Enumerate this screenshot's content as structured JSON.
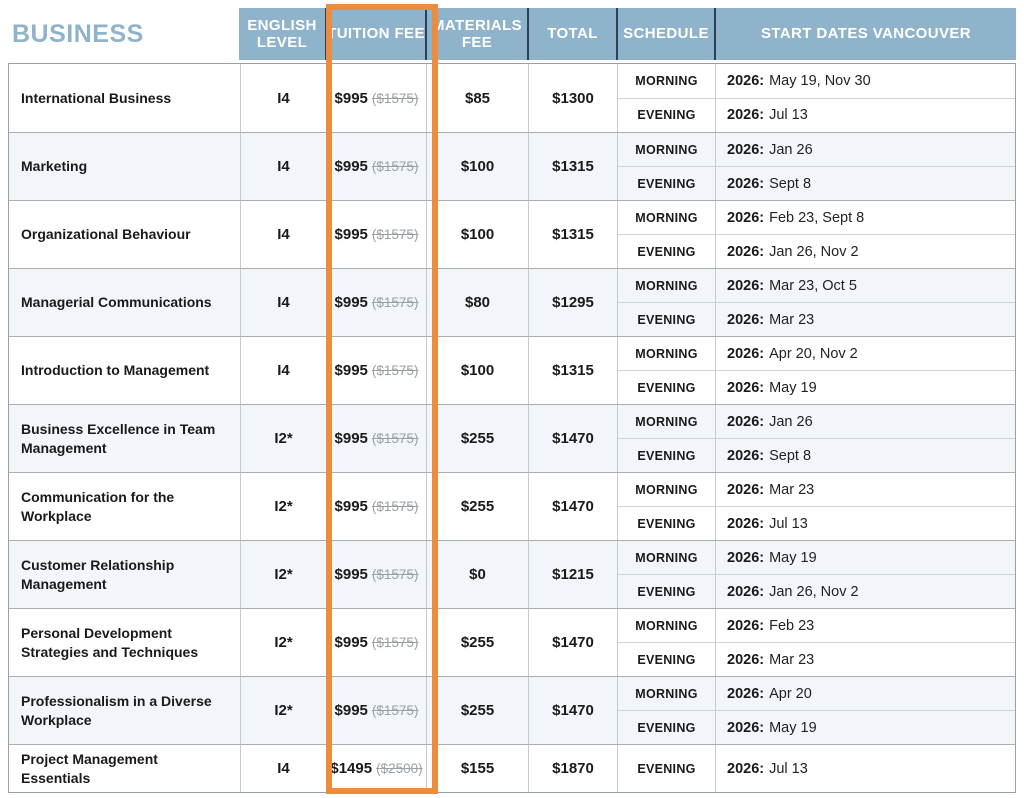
{
  "title": "BUSINESS",
  "columns": {
    "english_level": "English Level",
    "tuition_fee": "Tuition Fee",
    "materials_fee": "Materials Fee",
    "total": "Total",
    "schedule": "Schedule",
    "start_dates": "Start Dates Vancouver"
  },
  "colors": {
    "header_bg": "#8FB3CB",
    "header_divider": "#2E4152",
    "highlight_orange": "#EC8C3E",
    "shaded_row": "#F2F5FA",
    "old_price_gray": "#9AA0A8"
  },
  "highlight": {
    "column": "tuition_fee"
  },
  "rows": [
    {
      "name": "International Business",
      "level": "I4",
      "tuition": "$995",
      "tuition_old": "($1575)",
      "materials": "$85",
      "total": "$1300",
      "schedule": [
        {
          "label": "MORNING",
          "year": "2026:",
          "dates": "May 19, Nov 30"
        },
        {
          "label": "EVENING",
          "year": "2026:",
          "dates": "Jul 13"
        }
      ]
    },
    {
      "name": "Marketing",
      "level": "I4",
      "tuition": "$995",
      "tuition_old": "($1575)",
      "materials": "$100",
      "total": "$1315",
      "schedule": [
        {
          "label": "MORNING",
          "year": "2026:",
          "dates": "Jan 26"
        },
        {
          "label": "EVENING",
          "year": "2026:",
          "dates": "Sept 8"
        }
      ]
    },
    {
      "name": "Organizational Behaviour",
      "level": "I4",
      "tuition": "$995",
      "tuition_old": "($1575)",
      "materials": "$100",
      "total": "$1315",
      "schedule": [
        {
          "label": "MORNING",
          "year": "2026:",
          "dates": "Feb 23, Sept 8"
        },
        {
          "label": "EVENING",
          "year": "2026:",
          "dates": "Jan 26, Nov 2"
        }
      ]
    },
    {
      "name": "Managerial Communications",
      "level": "I4",
      "tuition": "$995",
      "tuition_old": "($1575)",
      "materials": "$80",
      "total": "$1295",
      "schedule": [
        {
          "label": "MORNING",
          "year": "2026:",
          "dates": "Mar 23, Oct 5"
        },
        {
          "label": "EVENING",
          "year": "2026:",
          "dates": "Mar 23"
        }
      ]
    },
    {
      "name": "Introduction to Management",
      "level": "I4",
      "tuition": "$995",
      "tuition_old": "($1575)",
      "materials": "$100",
      "total": "$1315",
      "schedule": [
        {
          "label": "MORNING",
          "year": "2026:",
          "dates": "Apr 20, Nov 2"
        },
        {
          "label": "EVENING",
          "year": "2026:",
          "dates": "May 19"
        }
      ]
    },
    {
      "name": "Business Excellence in Team Management",
      "level": "I2*",
      "tuition": "$995",
      "tuition_old": "($1575)",
      "materials": "$255",
      "total": "$1470",
      "schedule": [
        {
          "label": "MORNING",
          "year": "2026:",
          "dates": "Jan 26"
        },
        {
          "label": "EVENING",
          "year": "2026:",
          "dates": "Sept 8"
        }
      ]
    },
    {
      "name": "Communication for the Workplace",
      "level": "I2*",
      "tuition": "$995",
      "tuition_old": "($1575)",
      "materials": "$255",
      "total": "$1470",
      "schedule": [
        {
          "label": "MORNING",
          "year": "2026:",
          "dates": "Mar 23"
        },
        {
          "label": "EVENING",
          "year": "2026:",
          "dates": "Jul 13"
        }
      ]
    },
    {
      "name": "Customer Relationship Management",
      "level": "I2*",
      "tuition": "$995",
      "tuition_old": "($1575)",
      "materials": "$0",
      "total": "$1215",
      "schedule": [
        {
          "label": "MORNING",
          "year": "2026:",
          "dates": "May 19"
        },
        {
          "label": "EVENING",
          "year": "2026:",
          "dates": "Jan 26, Nov 2"
        }
      ]
    },
    {
      "name": "Personal Development Strategies and Techniques",
      "level": "I2*",
      "tuition": "$995",
      "tuition_old": "($1575)",
      "materials": "$255",
      "total": "$1470",
      "schedule": [
        {
          "label": "MORNING",
          "year": "2026:",
          "dates": "Feb 23"
        },
        {
          "label": "EVENING",
          "year": "2026:",
          "dates": "Mar 23"
        }
      ]
    },
    {
      "name": "Professionalism in a Diverse Workplace",
      "level": "I2*",
      "tuition": "$995",
      "tuition_old": "($1575)",
      "materials": "$255",
      "total": "$1470",
      "schedule": [
        {
          "label": "MORNING",
          "year": "2026:",
          "dates": "Apr 20"
        },
        {
          "label": "EVENING",
          "year": "2026:",
          "dates": "May 19"
        }
      ]
    },
    {
      "name": "Project Management Essentials",
      "level": "I4",
      "tuition": "$1495",
      "tuition_old": "($2500)",
      "materials": "$155",
      "total": "$1870",
      "schedule": [
        {
          "label": "EVENING",
          "year": "2026:",
          "dates": "Jul 13"
        }
      ]
    }
  ]
}
